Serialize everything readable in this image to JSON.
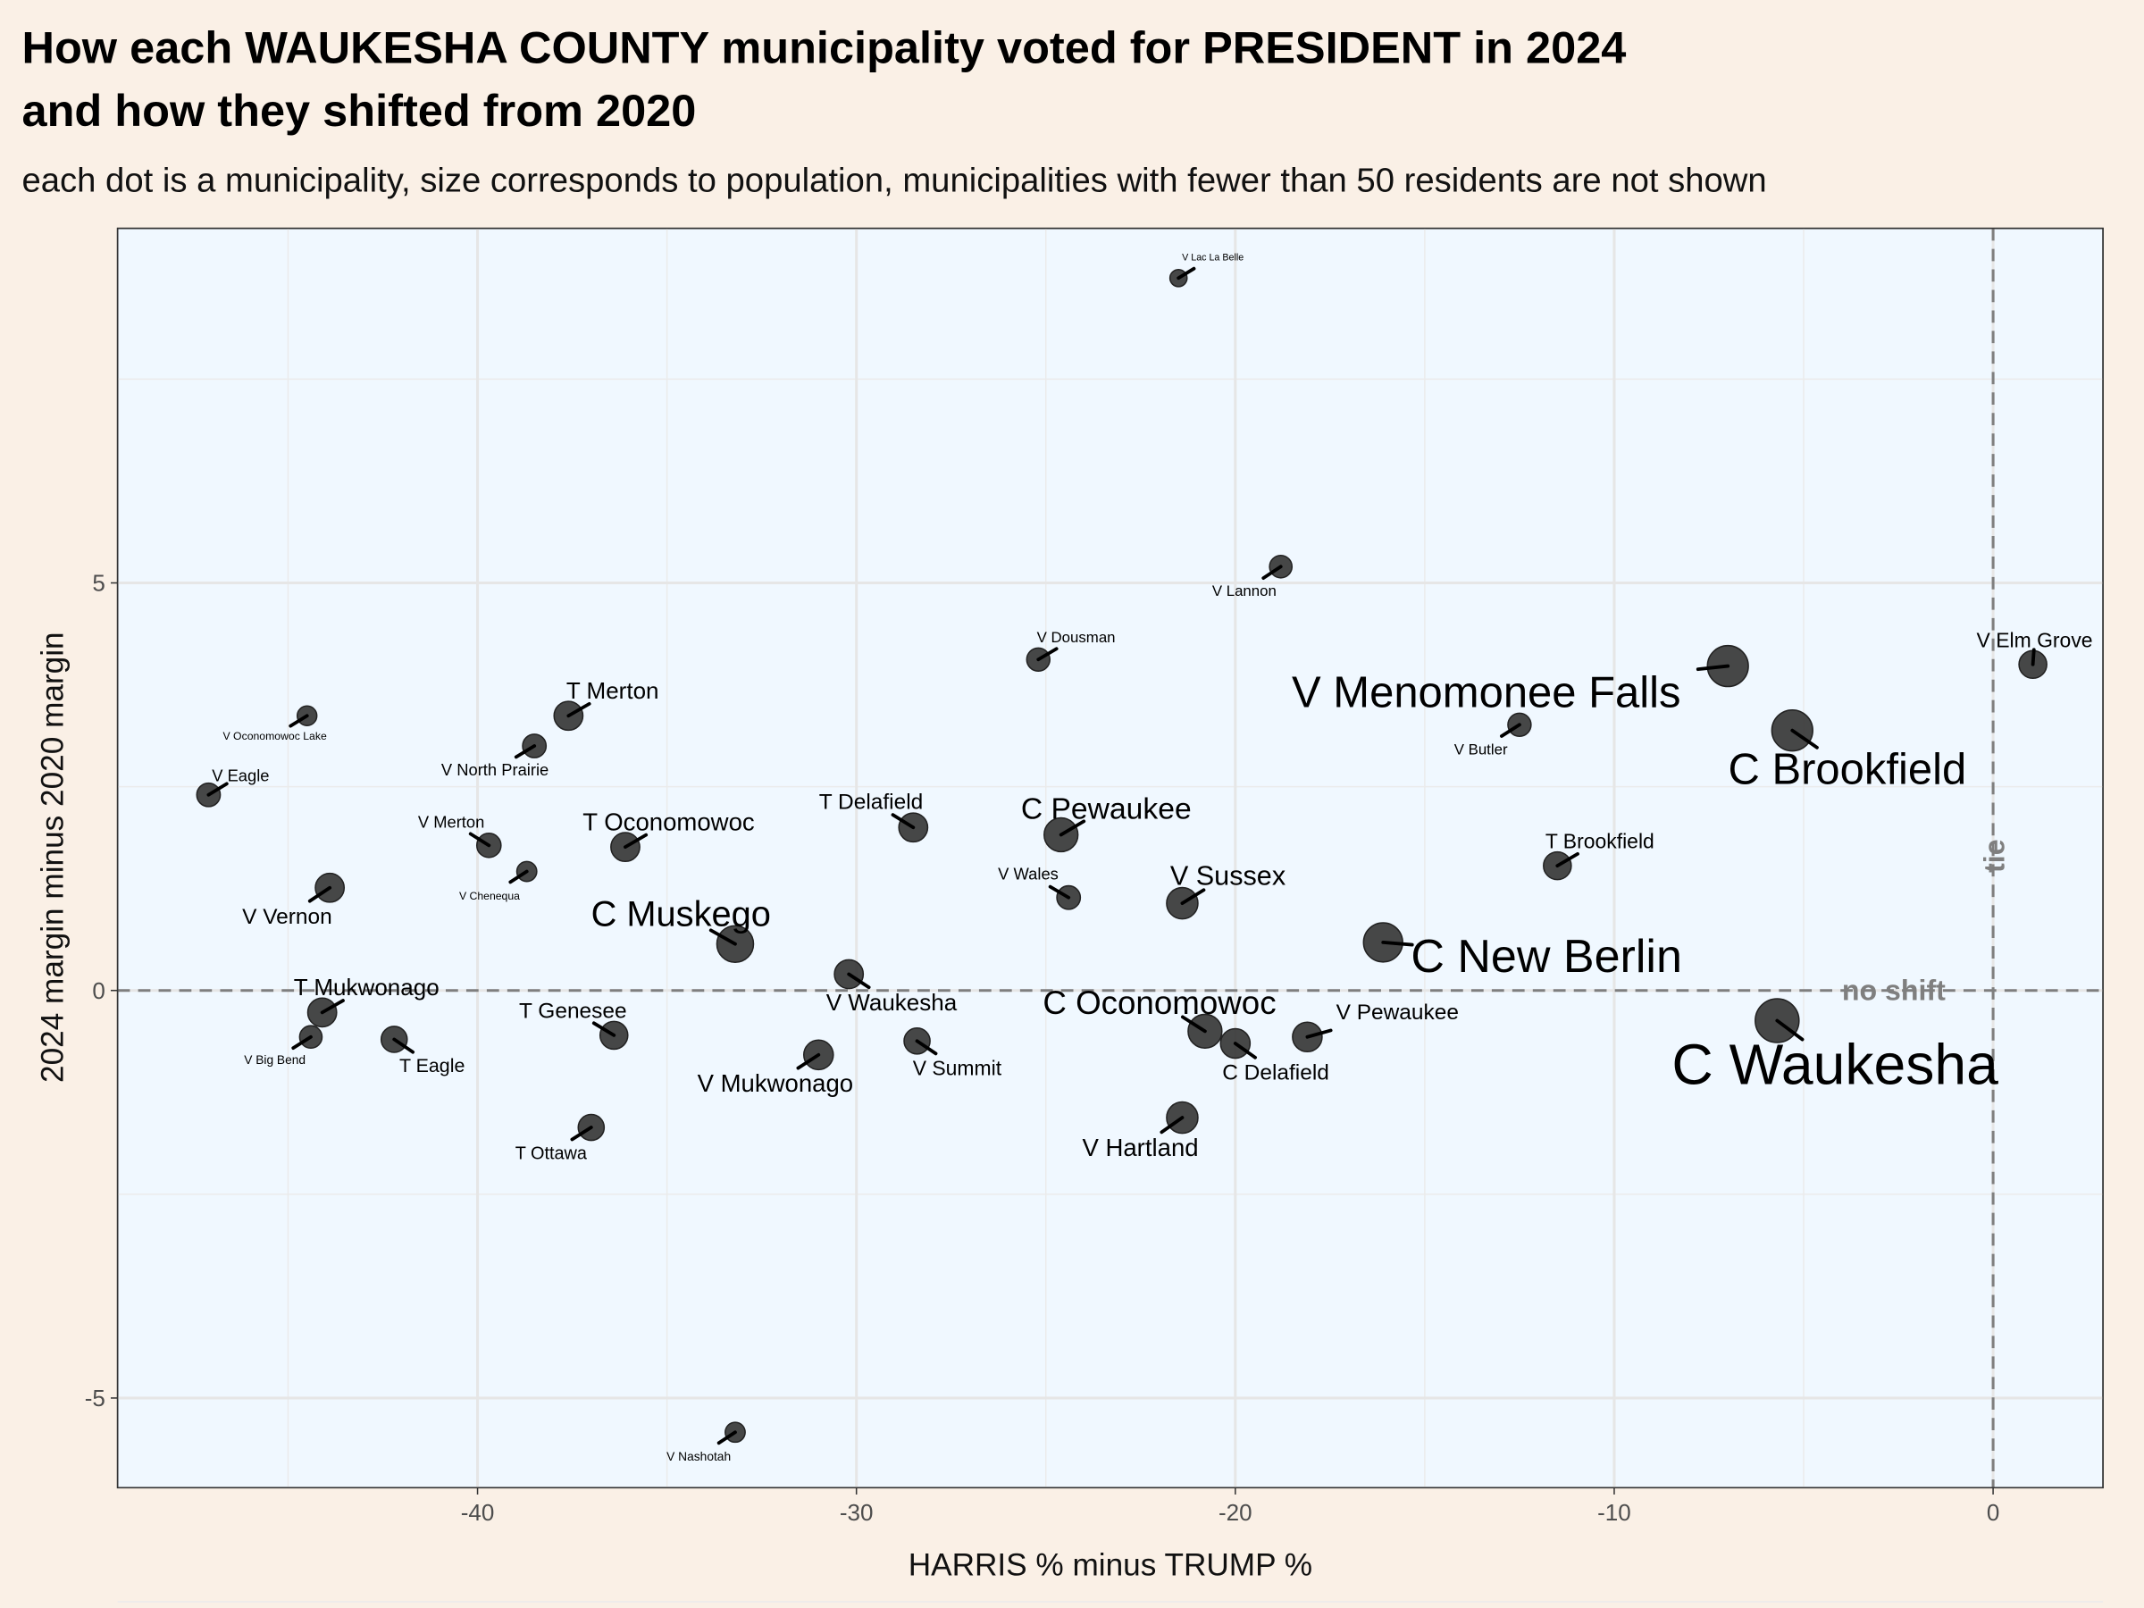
{
  "chart_data": {
    "type": "scatter",
    "title": "How each WAUKESHA COUNTY municipality voted for PRESIDENT in 2024\nand how they shifted from 2020",
    "title_lines": [
      "How each WAUKESHA COUNTY municipality voted for PRESIDENT in 2024",
      "and how they shifted from 2020"
    ],
    "subtitle": "each dot is a municipality, size corresponds to population, municipalities with fewer than 50 residents are not shown",
    "xlabel": "HARRIS % minus TRUMP %",
    "ylabel": "2024 margin minus 2020 margin",
    "xlim": [
      -49.5,
      2.9
    ],
    "ylim": [
      -6.1,
      9.35
    ],
    "xticks": [
      -40,
      -30,
      -20,
      -10,
      0
    ],
    "yticks": [
      -5,
      0,
      5
    ],
    "grid": true,
    "reference_lines": {
      "hline": {
        "y": 0,
        "label": "no shift"
      },
      "vline": {
        "x": 0,
        "label": "tie"
      }
    },
    "colors": {
      "background": "#faf0e6",
      "panel": "#f0f8ff",
      "point": "#333333",
      "refline": "#7f7f7f"
    },
    "points": [
      {
        "label": "V Lac La Belle",
        "x": -21.5,
        "y": 8.74,
        "pop_scale": 0.25
      },
      {
        "label": "V Lannon",
        "x": -18.8,
        "y": 5.2,
        "pop_scale": 0.4
      },
      {
        "label": "V Dousman",
        "x": -25.2,
        "y": 4.06,
        "pop_scale": 0.42
      },
      {
        "label": "V Elm Grove",
        "x": 1.05,
        "y": 4.0,
        "pop_scale": 0.55
      },
      {
        "label": "V Menomonee Falls",
        "x": -7.0,
        "y": 3.98,
        "pop_scale": 0.92
      },
      {
        "label": "C Brookfield",
        "x": -5.3,
        "y": 3.19,
        "pop_scale": 0.92
      },
      {
        "label": "V Butler",
        "x": -12.5,
        "y": 3.26,
        "pop_scale": 0.42
      },
      {
        "label": "T Merton",
        "x": -37.6,
        "y": 3.37,
        "pop_scale": 0.58
      },
      {
        "label": "V Oconomowoc Lake",
        "x": -44.5,
        "y": 3.37,
        "pop_scale": 0.32
      },
      {
        "label": "V North Prairie",
        "x": -38.5,
        "y": 3.0,
        "pop_scale": 0.43
      },
      {
        "label": "V Eagle",
        "x": -47.1,
        "y": 2.4,
        "pop_scale": 0.43
      },
      {
        "label": "T Delafield",
        "x": -28.5,
        "y": 2.0,
        "pop_scale": 0.58
      },
      {
        "label": "C Pewaukee",
        "x": -24.6,
        "y": 1.91,
        "pop_scale": 0.72
      },
      {
        "label": "V Merton",
        "x": -39.7,
        "y": 1.78,
        "pop_scale": 0.45
      },
      {
        "label": "T Oconomowoc",
        "x": -36.1,
        "y": 1.76,
        "pop_scale": 0.58
      },
      {
        "label": "T Brookfield",
        "x": -11.5,
        "y": 1.53,
        "pop_scale": 0.55
      },
      {
        "label": "V Chenequa",
        "x": -38.7,
        "y": 1.46,
        "pop_scale": 0.33
      },
      {
        "label": "V Vernon",
        "x": -43.9,
        "y": 1.26,
        "pop_scale": 0.58
      },
      {
        "label": "V Wales",
        "x": -24.4,
        "y": 1.14,
        "pop_scale": 0.43
      },
      {
        "label": "V Sussex",
        "x": -21.4,
        "y": 1.07,
        "pop_scale": 0.65
      },
      {
        "label": "C Muskego",
        "x": -33.2,
        "y": 0.57,
        "pop_scale": 0.8
      },
      {
        "label": "C New Berlin",
        "x": -16.1,
        "y": 0.59,
        "pop_scale": 0.87
      },
      {
        "label": "V Waukesha",
        "x": -30.2,
        "y": 0.2,
        "pop_scale": 0.58
      },
      {
        "label": "T Mukwonago",
        "x": -44.1,
        "y": -0.27,
        "pop_scale": 0.58
      },
      {
        "label": "C Waukesha",
        "x": -5.7,
        "y": -0.37,
        "pop_scale": 1.0
      },
      {
        "label": "C Oconomowoc",
        "x": -20.8,
        "y": -0.5,
        "pop_scale": 0.72
      },
      {
        "label": "T Genesee",
        "x": -36.4,
        "y": -0.55,
        "pop_scale": 0.55
      },
      {
        "label": "V Big Bend",
        "x": -44.4,
        "y": -0.57,
        "pop_scale": 0.4
      },
      {
        "label": "T Eagle",
        "x": -42.2,
        "y": -0.6,
        "pop_scale": 0.5
      },
      {
        "label": "V Pewaukee",
        "x": -18.1,
        "y": -0.57,
        "pop_scale": 0.6
      },
      {
        "label": "V Summit",
        "x": -28.4,
        "y": -0.62,
        "pop_scale": 0.5
      },
      {
        "label": "C Delafield",
        "x": -20.0,
        "y": -0.65,
        "pop_scale": 0.6
      },
      {
        "label": "V Mukwonago",
        "x": -31.0,
        "y": -0.79,
        "pop_scale": 0.6
      },
      {
        "label": "V Hartland",
        "x": -21.4,
        "y": -1.56,
        "pop_scale": 0.65
      },
      {
        "label": "T Ottawa",
        "x": -37.0,
        "y": -1.68,
        "pop_scale": 0.5
      },
      {
        "label": "V Nashotah",
        "x": -33.2,
        "y": -5.42,
        "pop_scale": 0.33
      }
    ]
  }
}
